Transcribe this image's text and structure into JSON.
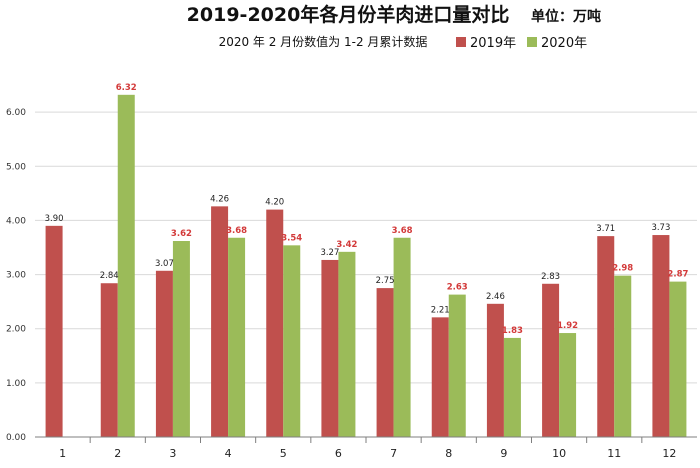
{
  "title": "2019-2020年各月份羊肉进口量对比",
  "unit": "单位：万吨",
  "subtitle": "2020 年 2 月份数值为 1-2 月累计数据",
  "colors": {
    "s2019": "#c0504d",
    "s2020": "#9bbb59",
    "grid": "#d9d9d9",
    "axis": "#7f7f7f"
  },
  "chart_data": {
    "type": "bar",
    "title": "2019-2020年各月份羊肉进口量对比",
    "categories": [
      "1",
      "2",
      "3",
      "4",
      "5",
      "6",
      "7",
      "8",
      "9",
      "10",
      "11",
      "12"
    ],
    "series": [
      {
        "name": "2019年",
        "values": [
          3.9,
          2.84,
          3.07,
          4.26,
          4.2,
          3.27,
          2.75,
          2.21,
          2.46,
          2.83,
          3.71,
          3.73
        ]
      },
      {
        "name": "2020年",
        "values": [
          null,
          6.32,
          3.62,
          3.68,
          3.54,
          3.42,
          3.68,
          2.63,
          1.83,
          1.92,
          2.98,
          2.87
        ]
      }
    ],
    "ylim": [
      0,
      7
    ],
    "yticks": [
      "0.00",
      "1.00",
      "2.00",
      "3.00",
      "4.00",
      "5.00",
      "6.00"
    ],
    "labels_2019": [
      "3.90",
      "2.84",
      "3.07",
      "4.26",
      "4.20",
      "3.27",
      "2.75",
      "2.21",
      "2.46",
      "2.83",
      "3.71",
      "3.73"
    ],
    "labels_2020": [
      "",
      "6.32",
      "3.62",
      "3.68",
      "3.54",
      "3.42",
      "3.68",
      "2.63",
      "1.83",
      "1.92",
      "2.98",
      "2.87"
    ],
    "grid": true,
    "legend": "top-right"
  }
}
